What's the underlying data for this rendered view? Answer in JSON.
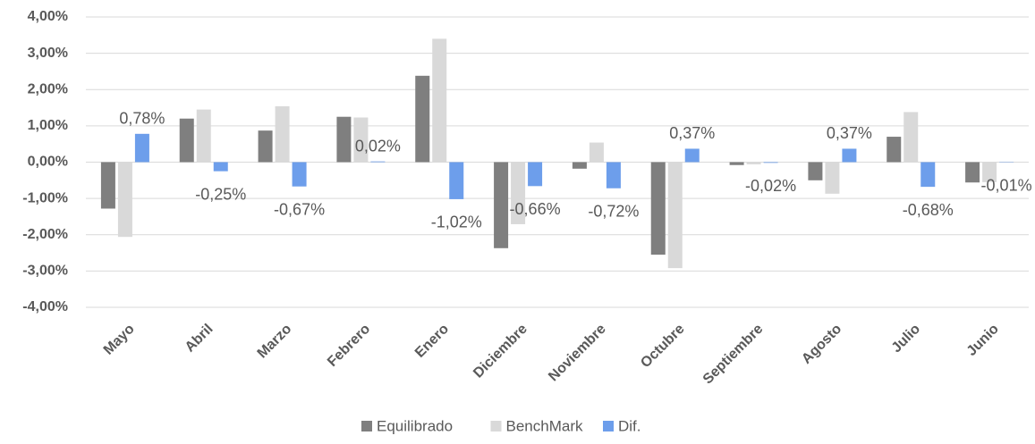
{
  "chart_data": {
    "type": "bar",
    "categories": [
      "Mayo",
      "Abril",
      "Marzo",
      "Febrero",
      "Enero",
      "Diciembre",
      "Noviembre",
      "Octubre",
      "Septiembre",
      "Agosto",
      "Julio",
      "Junio"
    ],
    "series": [
      {
        "name": "Equilibrado",
        "color": "#7f7f7f",
        "values": [
          -1.28,
          1.2,
          0.87,
          1.25,
          2.38,
          -2.37,
          -0.18,
          -2.55,
          -0.08,
          -0.5,
          0.7,
          -0.56
        ]
      },
      {
        "name": "BenchMark",
        "color": "#d9d9d9",
        "values": [
          -2.06,
          1.45,
          1.54,
          1.23,
          3.4,
          -1.71,
          0.54,
          -2.92,
          -0.06,
          -0.87,
          1.38,
          -0.55
        ]
      },
      {
        "name": "Dif.",
        "color": "#6d9eeb",
        "values": [
          0.78,
          -0.25,
          -0.67,
          0.02,
          -1.02,
          -0.66,
          -0.72,
          0.37,
          -0.02,
          0.37,
          -0.68,
          -0.01
        ],
        "value_labels": [
          "0,78%",
          "-0,25%",
          "-0,67%",
          "0,02%",
          "-1,02%",
          "-0,66%",
          "-0,72%",
          "0,37%",
          "-0,02%",
          "0,37%",
          "-0,68%",
          "-0,01%"
        ]
      }
    ],
    "ylim": [
      -4,
      4
    ],
    "yticks": [
      {
        "value": -4,
        "label": "-4,00%"
      },
      {
        "value": -3,
        "label": "-3,00%"
      },
      {
        "value": -2,
        "label": "-2,00%"
      },
      {
        "value": -1,
        "label": "-1,00%"
      },
      {
        "value": 0,
        "label": "0,00%"
      },
      {
        "value": 1,
        "label": "1,00%"
      },
      {
        "value": 2,
        "label": "2,00%"
      },
      {
        "value": 3,
        "label": "3,00%"
      },
      {
        "value": 4,
        "label": "4,00%"
      }
    ],
    "grid": true,
    "legend": "bottom"
  }
}
